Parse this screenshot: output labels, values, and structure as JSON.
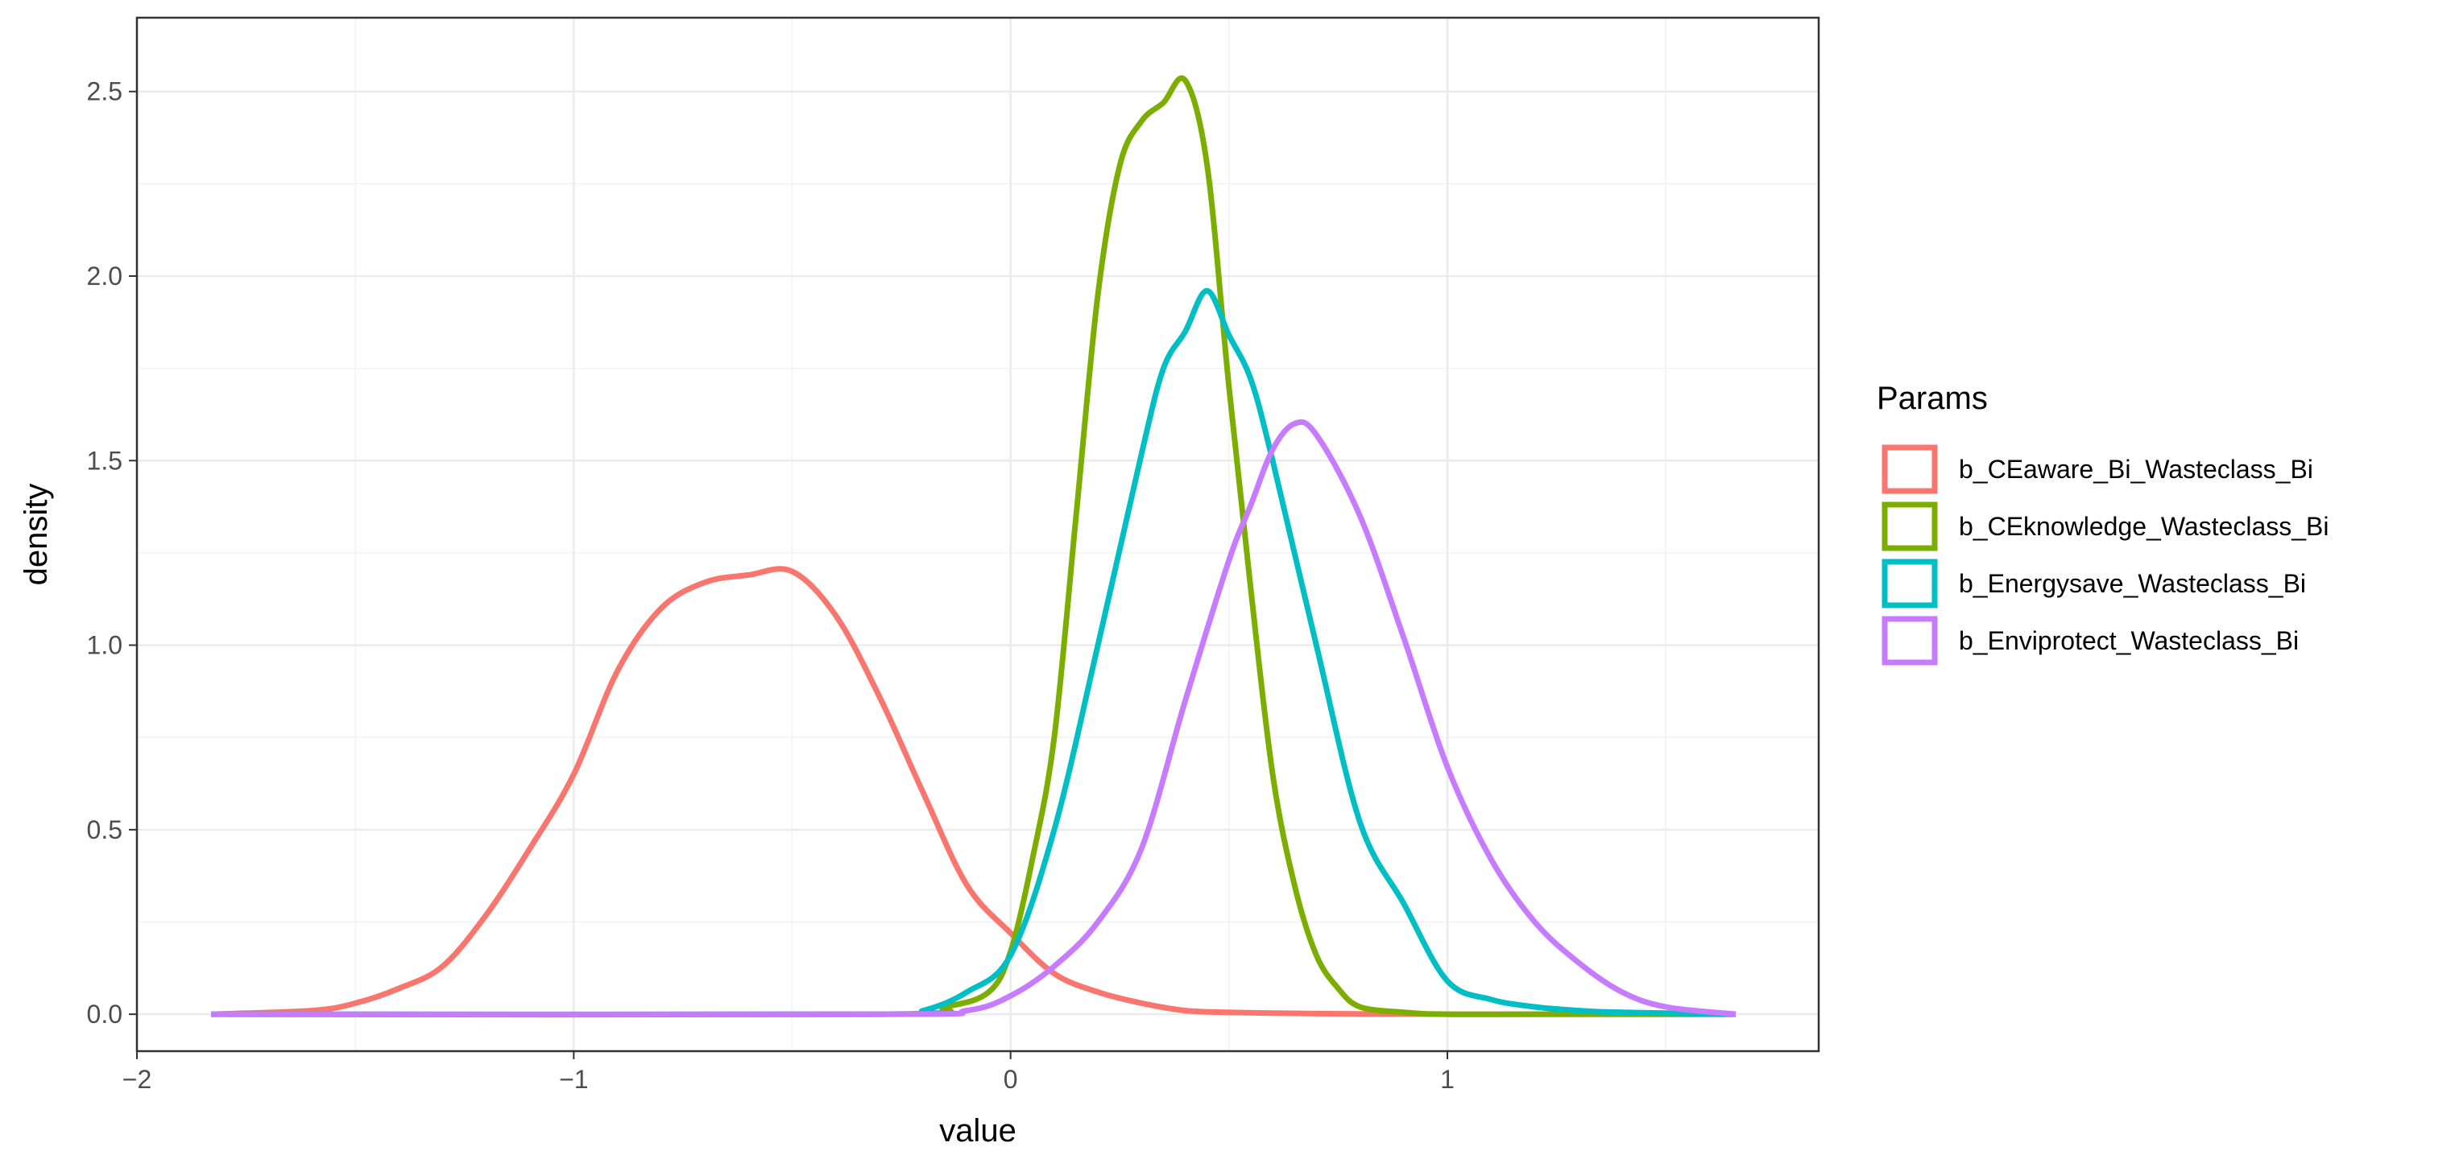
{
  "chart_data": {
    "type": "line",
    "title": "",
    "xlabel": "value",
    "ylabel": "density",
    "xlim": [
      -2.0,
      1.85
    ],
    "ylim": [
      -0.1,
      2.7
    ],
    "x_ticks": [
      -2,
      -1,
      0,
      1
    ],
    "x_tick_labels": [
      "−2",
      "−1",
      "0",
      "1"
    ],
    "y_ticks": [
      0.0,
      0.5,
      1.0,
      1.5,
      2.0,
      2.5
    ],
    "y_tick_labels": [
      "0.0",
      "0.5",
      "1.0",
      "1.5",
      "2.0",
      "2.5"
    ],
    "grid": true,
    "legend": {
      "title": "Params",
      "position": "right"
    },
    "series": [
      {
        "name": "b_CEaware_Bi_Wasteclass_Bi",
        "color": "#F8766D",
        "x": [
          -1.83,
          -1.6,
          -1.5,
          -1.4,
          -1.3,
          -1.2,
          -1.1,
          -1.0,
          -0.9,
          -0.8,
          -0.7,
          -0.6,
          -0.5,
          -0.4,
          -0.3,
          -0.2,
          -0.1,
          0.0,
          0.1,
          0.2,
          0.3,
          0.4,
          0.5,
          0.6,
          0.8,
          1.0,
          1.2,
          1.66
        ],
        "y": [
          0.0,
          0.01,
          0.03,
          0.07,
          0.13,
          0.27,
          0.45,
          0.65,
          0.93,
          1.1,
          1.17,
          1.19,
          1.2,
          1.08,
          0.86,
          0.6,
          0.35,
          0.22,
          0.11,
          0.06,
          0.03,
          0.01,
          0.005,
          0.003,
          0.001,
          0.0,
          0.0,
          0.0
        ]
      },
      {
        "name": "b_CEknowledge_Wasteclass_Bi",
        "color": "#7CAE00",
        "x": [
          -1.83,
          -0.3,
          -0.15,
          -0.05,
          0.0,
          0.05,
          0.1,
          0.15,
          0.2,
          0.25,
          0.3,
          0.35,
          0.4,
          0.45,
          0.5,
          0.55,
          0.6,
          0.65,
          0.7,
          0.75,
          0.8,
          0.9,
          1.0,
          1.2,
          1.66
        ],
        "y": [
          0.0,
          0.0,
          0.02,
          0.06,
          0.17,
          0.42,
          0.75,
          1.35,
          1.95,
          2.3,
          2.42,
          2.47,
          2.53,
          2.3,
          1.7,
          1.15,
          0.65,
          0.35,
          0.16,
          0.07,
          0.02,
          0.005,
          0.0,
          0.0,
          0.0
        ]
      },
      {
        "name": "b_Energysave_Wasteclass_Bi",
        "color": "#00BFC4",
        "x": [
          -1.83,
          -0.3,
          -0.2,
          -0.1,
          0.0,
          0.1,
          0.2,
          0.3,
          0.35,
          0.4,
          0.45,
          0.5,
          0.55,
          0.6,
          0.7,
          0.8,
          0.9,
          1.0,
          1.1,
          1.2,
          1.3,
          1.4,
          1.66
        ],
        "y": [
          0.0,
          0.0,
          0.01,
          0.06,
          0.16,
          0.5,
          1.0,
          1.52,
          1.75,
          1.85,
          1.96,
          1.84,
          1.72,
          1.5,
          1.0,
          0.52,
          0.3,
          0.09,
          0.04,
          0.02,
          0.01,
          0.005,
          0.0
        ]
      },
      {
        "name": "b_Enviprotect_Wasteclass_Bi",
        "color": "#C77CFF",
        "x": [
          -1.83,
          -0.3,
          -0.1,
          0.0,
          0.1,
          0.2,
          0.3,
          0.4,
          0.5,
          0.55,
          0.6,
          0.65,
          0.7,
          0.8,
          0.9,
          1.0,
          1.1,
          1.2,
          1.3,
          1.4,
          1.5,
          1.66
        ],
        "y": [
          0.0,
          0.0,
          0.01,
          0.05,
          0.13,
          0.25,
          0.45,
          0.85,
          1.23,
          1.38,
          1.53,
          1.6,
          1.57,
          1.35,
          1.02,
          0.67,
          0.42,
          0.25,
          0.14,
          0.06,
          0.02,
          0.0
        ]
      }
    ]
  }
}
